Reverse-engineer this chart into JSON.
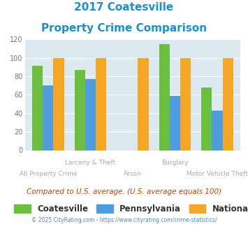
{
  "title_line1": "2017 Coatesville",
  "title_line2": "Property Crime Comparison",
  "title_color": "#1a8fd1",
  "categories": [
    "All Property Crime",
    "Larceny & Theft",
    "Arson",
    "Burglary",
    "Motor Vehicle Theft"
  ],
  "coatesville": [
    91,
    87,
    0,
    115,
    68
  ],
  "pennsylvania": [
    70,
    77,
    0,
    59,
    43
  ],
  "national": [
    100,
    100,
    100,
    100,
    100
  ],
  "coatesville_color": "#6abf3f",
  "pennsylvania_color": "#4d9de0",
  "national_color": "#f5a623",
  "ylim": [
    0,
    120
  ],
  "yticks": [
    0,
    20,
    40,
    60,
    80,
    100,
    120
  ],
  "background_color": "#dce9f0",
  "legend_labels": [
    "Coatesville",
    "Pennsylvania",
    "National"
  ],
  "note": "Compared to U.S. average. (U.S. average equals 100)",
  "note_color": "#cc4400",
  "footer": "© 2025 CityRating.com - https://www.cityrating.com/crime-statistics/",
  "footer_color": "#5588bb",
  "xlabel_color": "#aaaaaa",
  "bar_width": 0.25
}
